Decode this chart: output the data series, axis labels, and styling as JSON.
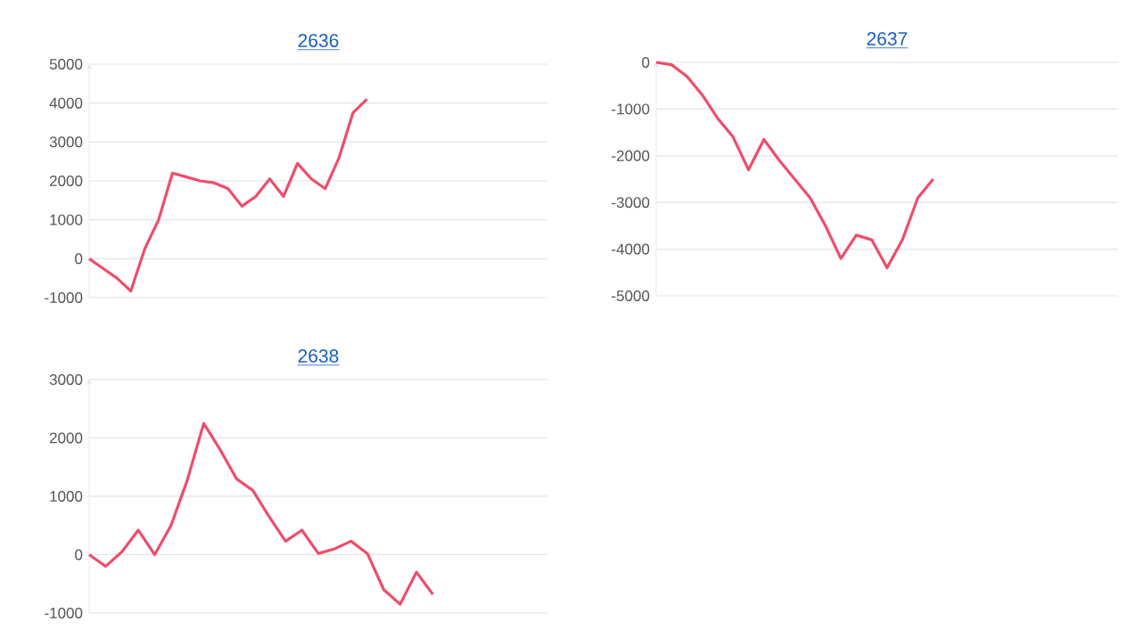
{
  "chart_data": [
    {
      "type": "line",
      "title": "2636",
      "categories": [
        null,
        null,
        null,
        null,
        null,
        null,
        null,
        null,
        null,
        null,
        null,
        null,
        null,
        null,
        null,
        null,
        null,
        null,
        null,
        null,
        null,
        null,
        null,
        null,
        null,
        null,
        null,
        null,
        null,
        null,
        null,
        null,
        null,
        null
      ],
      "color": "#ef4d6b",
      "values": [
        0,
        -250,
        -500,
        -830,
        250,
        1000,
        2200,
        2100,
        2000,
        1950,
        1800,
        1350,
        1600,
        2050,
        1600,
        2450,
        2050,
        1800,
        2600,
        3750,
        4100,
        null,
        null,
        null,
        null,
        null,
        null,
        null,
        null,
        null,
        null,
        null,
        null,
        null
      ],
      "ylim": [
        -1000,
        5000
      ],
      "yticks": [
        -1000,
        0,
        1000,
        2000,
        3000,
        4000,
        5000
      ],
      "grid": "y",
      "tick_labels": "y"
    },
    {
      "type": "line",
      "title": "2637",
      "categories": [
        null,
        null,
        null,
        null,
        null,
        null,
        null,
        null,
        null,
        null,
        null,
        null,
        null,
        null,
        null,
        null,
        null,
        null,
        null,
        null,
        null,
        null,
        null,
        null,
        null,
        null,
        null,
        null,
        null,
        null,
        null
      ],
      "color": "#ef4d6b",
      "values": [
        0,
        -50,
        -300,
        -700,
        -1200,
        -1600,
        -2300,
        -1650,
        -2100,
        -2500,
        -2900,
        -3500,
        -4200,
        -3700,
        -3800,
        -4400,
        -3800,
        -2900,
        -2500,
        null,
        null,
        null,
        null,
        null,
        null,
        null,
        null,
        null,
        null,
        null,
        null
      ],
      "ylim": [
        -5000,
        0
      ],
      "yticks": [
        -5000,
        -4000,
        -3000,
        -2000,
        -1000,
        0
      ],
      "grid": "y",
      "tick_labels": "y"
    },
    {
      "type": "line",
      "title": "2638",
      "categories": [
        null,
        null,
        null,
        null,
        null,
        null,
        null,
        null,
        null,
        null,
        null,
        null,
        null,
        null,
        null,
        null,
        null,
        null,
        null,
        null,
        null,
        null,
        null,
        null,
        null,
        null,
        null,
        null,
        null
      ],
      "color": "#ef4d6b",
      "values": [
        0,
        -200,
        50,
        420,
        0,
        500,
        1280,
        2250,
        1800,
        1300,
        1100,
        650,
        230,
        420,
        20,
        100,
        230,
        20,
        -600,
        -850,
        -300,
        -680,
        null,
        null,
        null,
        null,
        null,
        null,
        null
      ],
      "ylim": [
        -1000,
        3000
      ],
      "yticks": [
        -1000,
        0,
        1000,
        2000,
        3000
      ],
      "grid": "y",
      "tick_labels": "y"
    }
  ]
}
